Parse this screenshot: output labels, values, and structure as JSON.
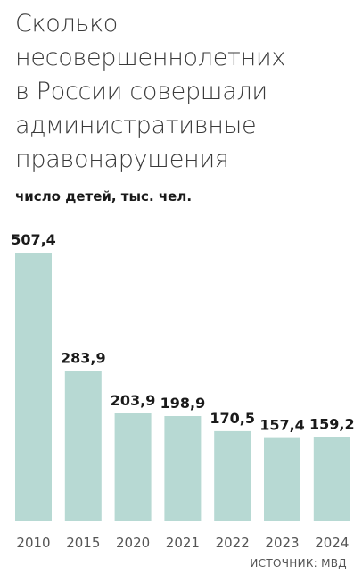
{
  "chart_data": {
    "type": "bar",
    "title_lines": [
      "Сколько",
      "несовершеннолетних",
      "в России совершали",
      "административные",
      "правонарушения"
    ],
    "subtitle": "число детей, тыс. чел.",
    "categories": [
      "2010",
      "2015",
      "2020",
      "2021",
      "2022",
      "2023",
      "2024"
    ],
    "values": [
      507.4,
      283.9,
      203.9,
      198.9,
      170.5,
      157.4,
      159.2
    ],
    "value_labels": [
      "507,4",
      "283,9",
      "203,9",
      "198,9",
      "170,5",
      "157,4",
      "159,2"
    ],
    "ylim": [
      0,
      507.4
    ],
    "grid": false,
    "legend": "none",
    "bar_color": "#b7d9d3",
    "source": "ИСТОЧНИК: МВД"
  }
}
